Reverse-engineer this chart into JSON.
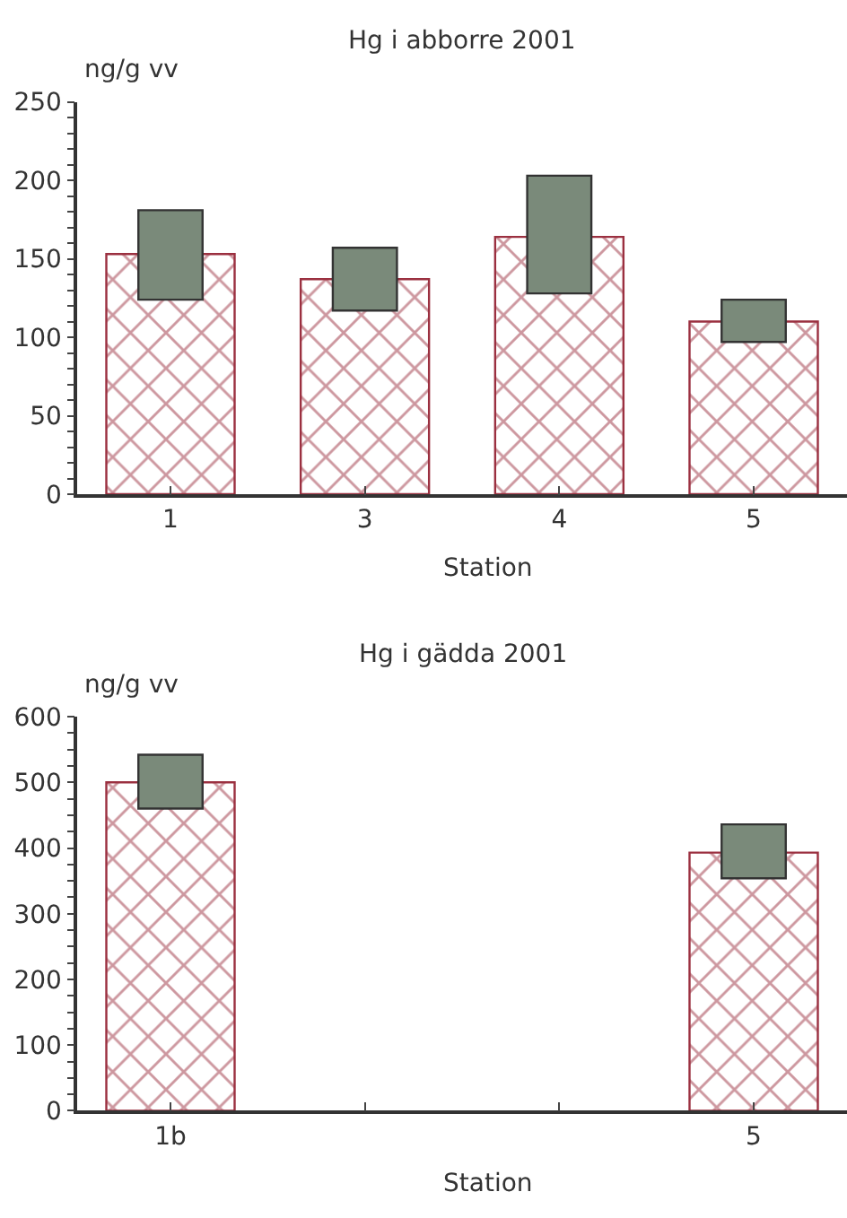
{
  "chart_data": [
    {
      "type": "bar",
      "title": "Hg i abborre 2001",
      "xlabel": "Station",
      "ylabel": "ng/g vv",
      "categories": [
        "1",
        "3",
        "4",
        "5"
      ],
      "series": [
        {
          "color": "#9b3040",
          "values": [
            153,
            137,
            164,
            110
          ]
        },
        {
          "color": "#7a8a7a",
          "values": [
            57,
            40,
            75,
            27
          ],
          "base": [
            124,
            117,
            128,
            97
          ]
        }
      ],
      "ylim": [
        0,
        250
      ],
      "yticks": [
        0,
        {
          "value": 10,
          "label": null
        },
        {
          "value": 20,
          "label": null
        },
        {
          "value": 30,
          "label": null
        },
        {
          "value": 40,
          "label": null
        },
        50,
        {
          "value": 60,
          "label": null
        },
        {
          "value": 70,
          "label": null
        },
        {
          "value": 80,
          "label": null
        },
        {
          "value": 90,
          "label": null
        },
        100,
        {
          "value": 110,
          "label": null
        },
        {
          "value": 120,
          "label": null
        },
        {
          "value": 130,
          "label": null
        },
        {
          "value": 140,
          "label": null
        },
        150,
        {
          "value": 160,
          "label": null
        },
        {
          "value": 170,
          "label": null
        },
        {
          "value": 180,
          "label": null
        },
        {
          "value": 190,
          "label": null
        },
        200,
        {
          "value": 210,
          "label": null
        },
        {
          "value": 220,
          "label": null
        },
        {
          "value": 230,
          "label": null
        },
        {
          "value": 240,
          "label": null
        },
        250
      ]
    },
    {
      "type": "bar",
      "title": "Hg i gädda 2001",
      "xlabel": "Station",
      "ylabel": "ng/g vv",
      "categories": [
        "1b",
        null,
        null,
        "5"
      ],
      "series": [
        {
          "color": "#9b3040",
          "values": [
            500,
            null,
            null,
            393
          ]
        },
        {
          "color": "#7a8a7a",
          "values": [
            82,
            null,
            null,
            82
          ],
          "base": [
            460,
            null,
            null,
            354
          ]
        }
      ],
      "ylim": [
        0,
        600
      ],
      "yticks": [
        0,
        {
          "value": 25,
          "label": null
        },
        {
          "value": 50,
          "label": null
        },
        {
          "value": 75,
          "label": null
        },
        100,
        {
          "value": 125,
          "label": null
        },
        {
          "value": 150,
          "label": null
        },
        {
          "value": 175,
          "label": null
        },
        200,
        {
          "value": 225,
          "label": null
        },
        {
          "value": 250,
          "label": null
        },
        {
          "value": 275,
          "label": null
        },
        300,
        {
          "value": 325,
          "label": null
        },
        {
          "value": 350,
          "label": null
        },
        {
          "value": 375,
          "label": null
        },
        400,
        {
          "value": 425,
          "label": null
        },
        {
          "value": 450,
          "label": null
        },
        {
          "value": 475,
          "label": null
        },
        500,
        {
          "value": 525,
          "label": null
        },
        {
          "value": 550,
          "label": null
        },
        {
          "value": 575,
          "label": null
        },
        600
      ]
    }
  ]
}
